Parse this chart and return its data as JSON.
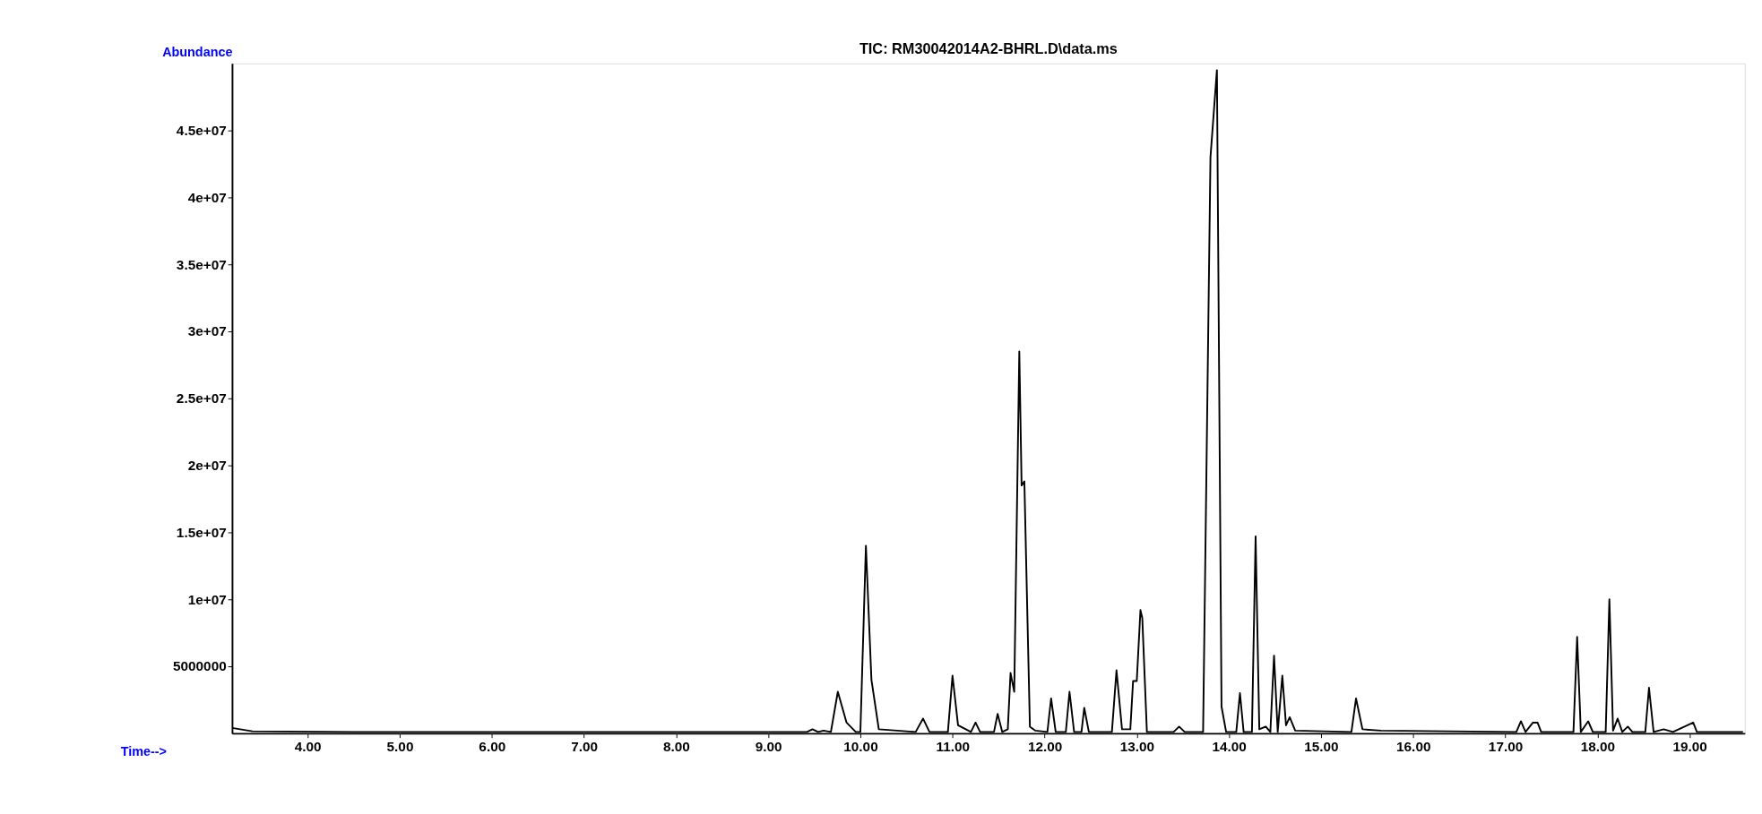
{
  "chart_data": {
    "type": "line",
    "title": "TIC: RM30042014A2-BHRL.D\\data.ms",
    "xlabel": "Time-->",
    "ylabel": "Abundance",
    "xlim": [
      3.18,
      19.6
    ],
    "ylim": [
      0,
      50000000
    ],
    "xticks": [
      {
        "value": 4,
        "label": "4.00"
      },
      {
        "value": 5,
        "label": "5.00"
      },
      {
        "value": 6,
        "label": "6.00"
      },
      {
        "value": 7,
        "label": "7.00"
      },
      {
        "value": 8,
        "label": "8.00"
      },
      {
        "value": 9,
        "label": "9.00"
      },
      {
        "value": 10,
        "label": "10.00"
      },
      {
        "value": 11,
        "label": "11.00"
      },
      {
        "value": 12,
        "label": "12.00"
      },
      {
        "value": 13,
        "label": "13.00"
      },
      {
        "value": 14,
        "label": "14.00"
      },
      {
        "value": 15,
        "label": "15.00"
      },
      {
        "value": 16,
        "label": "16.00"
      },
      {
        "value": 17,
        "label": "17.00"
      },
      {
        "value": 18,
        "label": "18.00"
      },
      {
        "value": 19,
        "label": "19.00"
      }
    ],
    "yticks": [
      5000000,
      {
        "value": 10000000,
        "label": "1e+07"
      },
      {
        "value": 15000000,
        "label": "1.5e+07"
      },
      {
        "value": 20000000,
        "label": "2e+07"
      },
      {
        "value": 25000000,
        "label": "2.5e+07"
      },
      {
        "value": 30000000,
        "label": "3e+07"
      },
      {
        "value": 35000000,
        "label": "3.5e+07"
      },
      {
        "value": 40000000,
        "label": "4e+07"
      },
      {
        "value": 45000000,
        "label": "4.5e+07"
      }
    ],
    "grid": false,
    "legend": false,
    "marker": "none",
    "line_style": "solid",
    "series": [
      {
        "color": "#000000",
        "x": [
          3.18,
          3.4,
          4.5,
          9.0,
          9.42,
          9.48,
          9.54,
          9.6,
          9.68,
          9.755,
          9.85,
          9.95,
          10.0,
          10.06,
          10.12,
          10.2,
          10.6,
          10.68,
          10.75,
          10.95,
          11.0,
          11.06,
          11.2,
          11.25,
          11.3,
          11.45,
          11.49,
          11.54,
          11.6,
          11.63,
          11.67,
          11.725,
          11.75,
          11.78,
          11.84,
          11.9,
          12.03,
          12.07,
          12.12,
          12.23,
          12.27,
          12.32,
          12.4,
          12.43,
          12.48,
          12.73,
          12.78,
          12.84,
          12.93,
          12.96,
          13.0,
          13.04,
          13.06,
          13.11,
          13.4,
          13.46,
          13.52,
          13.72,
          13.8,
          13.87,
          13.92,
          13.97,
          14.08,
          14.12,
          14.16,
          14.25,
          14.29,
          14.33,
          14.4,
          14.45,
          14.49,
          14.53,
          14.58,
          14.62,
          14.66,
          14.72,
          15.33,
          15.38,
          15.45,
          15.65,
          17.12,
          17.17,
          17.22,
          17.3,
          17.35,
          17.39,
          17.74,
          17.78,
          17.82,
          17.9,
          17.95,
          18.09,
          18.13,
          18.17,
          18.22,
          18.27,
          18.33,
          18.38,
          18.52,
          18.56,
          18.61,
          18.72,
          18.82,
          19.04,
          19.08,
          19.58
        ],
        "values": [
          400000,
          150000,
          100000,
          100000,
          100000,
          300000,
          100000,
          200000,
          100000,
          3100000,
          800000,
          100000,
          100000,
          14000000,
          4000000,
          300000,
          100000,
          1100000,
          100000,
          100000,
          4300000,
          600000,
          100000,
          800000,
          100000,
          100000,
          1450000,
          100000,
          300000,
          4500000,
          3100000,
          28500000,
          18500000,
          18800000,
          500000,
          200000,
          100000,
          2600000,
          100000,
          100000,
          3100000,
          100000,
          100000,
          1900000,
          100000,
          100000,
          4700000,
          300000,
          300000,
          3900000,
          3900000,
          9200000,
          8600000,
          100000,
          100000,
          500000,
          100000,
          100000,
          43000000,
          49500000,
          2000000,
          100000,
          100000,
          3000000,
          100000,
          100000,
          14700000,
          300000,
          500000,
          100000,
          5800000,
          100000,
          4300000,
          600000,
          1200000,
          200000,
          100000,
          2600000,
          300000,
          200000,
          100000,
          900000,
          100000,
          800000,
          800000,
          100000,
          100000,
          7200000,
          100000,
          900000,
          100000,
          100000,
          10000000,
          200000,
          1100000,
          100000,
          500000,
          100000,
          100000,
          3400000,
          100000,
          300000,
          100000,
          800000,
          100000,
          100000
        ]
      }
    ]
  }
}
